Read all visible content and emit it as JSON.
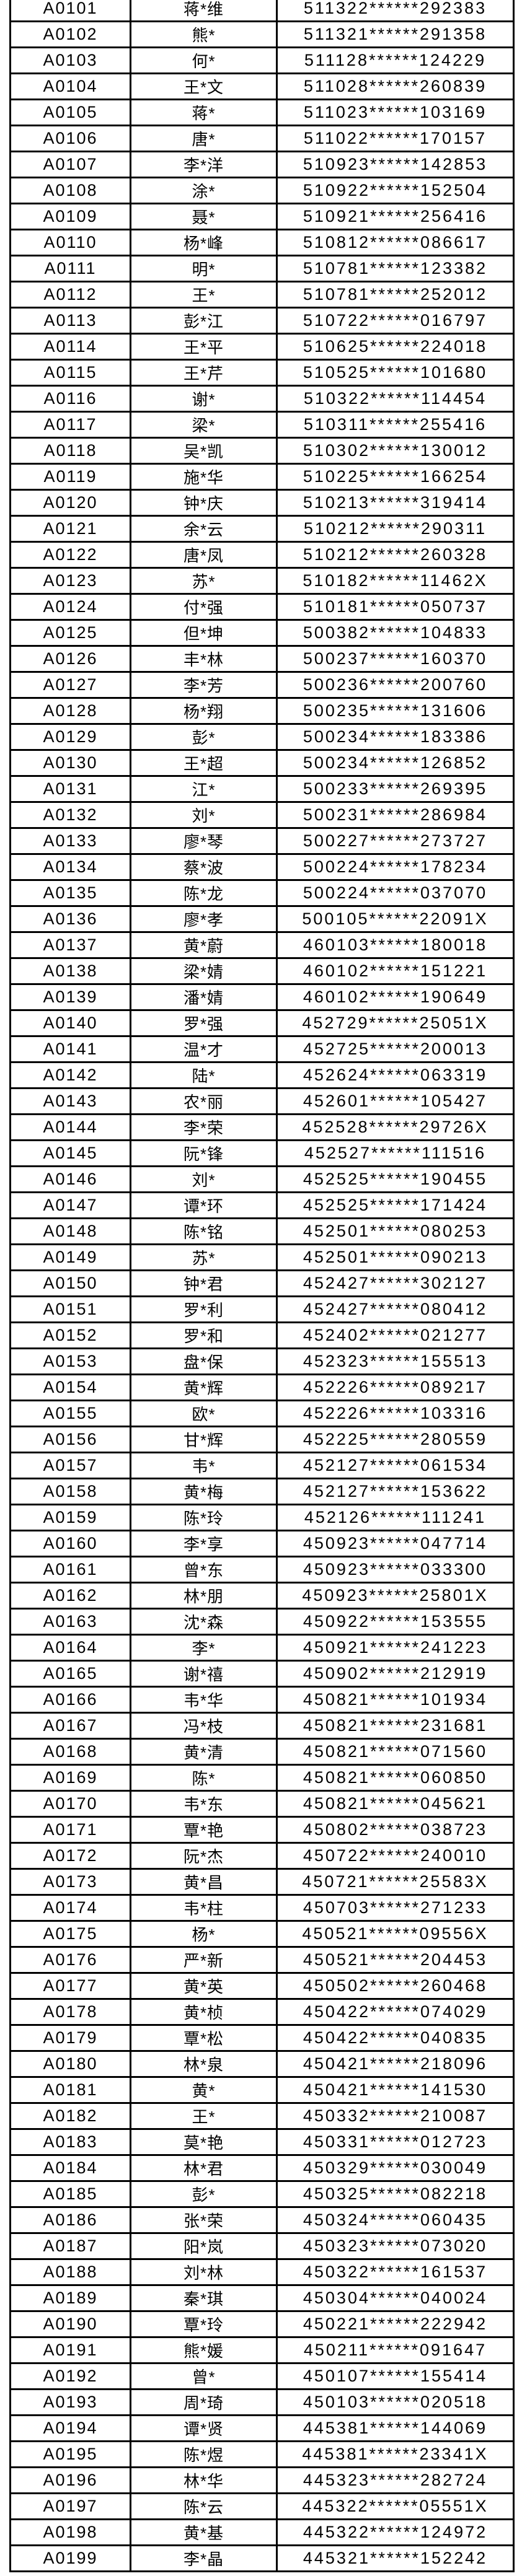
{
  "colors": {
    "background": "#ffffff",
    "border": "#000000",
    "text": "#000000"
  },
  "table": {
    "rows": [
      {
        "id": "A0101",
        "name": "蒋*维",
        "id_number": "511322******292383"
      },
      {
        "id": "A0102",
        "name": "熊*",
        "id_number": "511321******291358"
      },
      {
        "id": "A0103",
        "name": "何*",
        "id_number": "511128******124229"
      },
      {
        "id": "A0104",
        "name": "王*文",
        "id_number": "511028******260839"
      },
      {
        "id": "A0105",
        "name": "蒋*",
        "id_number": "511023******103169"
      },
      {
        "id": "A0106",
        "name": "唐*",
        "id_number": "511022******170157"
      },
      {
        "id": "A0107",
        "name": "李*洋",
        "id_number": "510923******142853"
      },
      {
        "id": "A0108",
        "name": "涂*",
        "id_number": "510922******152504"
      },
      {
        "id": "A0109",
        "name": "聂*",
        "id_number": "510921******256416"
      },
      {
        "id": "A0110",
        "name": "杨*峰",
        "id_number": "510812******086617"
      },
      {
        "id": "A0111",
        "name": "明*",
        "id_number": "510781******123382"
      },
      {
        "id": "A0112",
        "name": "王*",
        "id_number": "510781******252012"
      },
      {
        "id": "A0113",
        "name": "彭*江",
        "id_number": "510722******016797"
      },
      {
        "id": "A0114",
        "name": "王*平",
        "id_number": "510625******224018"
      },
      {
        "id": "A0115",
        "name": "王*芹",
        "id_number": "510525******101680"
      },
      {
        "id": "A0116",
        "name": "谢*",
        "id_number": "510322******114454"
      },
      {
        "id": "A0117",
        "name": "梁*",
        "id_number": "510311******255416"
      },
      {
        "id": "A0118",
        "name": "吴*凯",
        "id_number": "510302******130012"
      },
      {
        "id": "A0119",
        "name": "施*华",
        "id_number": "510225******166254"
      },
      {
        "id": "A0120",
        "name": "钟*庆",
        "id_number": "510213******319414"
      },
      {
        "id": "A0121",
        "name": "余*云",
        "id_number": "510212******290311"
      },
      {
        "id": "A0122",
        "name": "唐*凤",
        "id_number": "510212******260328"
      },
      {
        "id": "A0123",
        "name": "苏*",
        "id_number": "510182******11462X"
      },
      {
        "id": "A0124",
        "name": "付*强",
        "id_number": "510181******050737"
      },
      {
        "id": "A0125",
        "name": "但*坤",
        "id_number": "500382******104833"
      },
      {
        "id": "A0126",
        "name": "丰*林",
        "id_number": "500237******160370"
      },
      {
        "id": "A0127",
        "name": "李*芳",
        "id_number": "500236******200760"
      },
      {
        "id": "A0128",
        "name": "杨*翔",
        "id_number": "500235******131606"
      },
      {
        "id": "A0129",
        "name": "彭*",
        "id_number": "500234******183386"
      },
      {
        "id": "A0130",
        "name": "王*超",
        "id_number": "500234******126852"
      },
      {
        "id": "A0131",
        "name": "江*",
        "id_number": "500233******269395"
      },
      {
        "id": "A0132",
        "name": "刘*",
        "id_number": "500231******286984"
      },
      {
        "id": "A0133",
        "name": "廖*琴",
        "id_number": "500227******273727"
      },
      {
        "id": "A0134",
        "name": "蔡*波",
        "id_number": "500224******178234"
      },
      {
        "id": "A0135",
        "name": "陈*龙",
        "id_number": "500224******037070"
      },
      {
        "id": "A0136",
        "name": "廖*孝",
        "id_number": "500105******22091X"
      },
      {
        "id": "A0137",
        "name": "黄*蔚",
        "id_number": "460103******180018"
      },
      {
        "id": "A0138",
        "name": "梁*婧",
        "id_number": "460102******151221"
      },
      {
        "id": "A0139",
        "name": "潘*婧",
        "id_number": "460102******190649"
      },
      {
        "id": "A0140",
        "name": "罗*强",
        "id_number": "452729******25051X"
      },
      {
        "id": "A0141",
        "name": "温*才",
        "id_number": "452725******200013"
      },
      {
        "id": "A0142",
        "name": "陆*",
        "id_number": "452624******063319"
      },
      {
        "id": "A0143",
        "name": "农*丽",
        "id_number": "452601******105427"
      },
      {
        "id": "A0144",
        "name": "李*荣",
        "id_number": "452528******29726X"
      },
      {
        "id": "A0145",
        "name": "阮*锋",
        "id_number": "452527******111516"
      },
      {
        "id": "A0146",
        "name": "刘*",
        "id_number": "452525******190455"
      },
      {
        "id": "A0147",
        "name": "谭*环",
        "id_number": "452525******171424"
      },
      {
        "id": "A0148",
        "name": "陈*铭",
        "id_number": "452501******080253"
      },
      {
        "id": "A0149",
        "name": "苏*",
        "id_number": "452501******090213"
      },
      {
        "id": "A0150",
        "name": "钟*君",
        "id_number": "452427******302127"
      },
      {
        "id": "A0151",
        "name": "罗*利",
        "id_number": "452427******080412"
      },
      {
        "id": "A0152",
        "name": "罗*和",
        "id_number": "452402******021277"
      },
      {
        "id": "A0153",
        "name": "盘*保",
        "id_number": "452323******155513"
      },
      {
        "id": "A0154",
        "name": "黄*辉",
        "id_number": "452226******089217"
      },
      {
        "id": "A0155",
        "name": "欧*",
        "id_number": "452226******103316"
      },
      {
        "id": "A0156",
        "name": "甘*辉",
        "id_number": "452225******280559"
      },
      {
        "id": "A0157",
        "name": "韦*",
        "id_number": "452127******061534"
      },
      {
        "id": "A0158",
        "name": "黄*梅",
        "id_number": "452127******153622"
      },
      {
        "id": "A0159",
        "name": "陈*玲",
        "id_number": "452126******111241"
      },
      {
        "id": "A0160",
        "name": "李*享",
        "id_number": "450923******047714"
      },
      {
        "id": "A0161",
        "name": "曾*东",
        "id_number": "450923******033300"
      },
      {
        "id": "A0162",
        "name": "林*朋",
        "id_number": "450923******25801X"
      },
      {
        "id": "A0163",
        "name": "沈*森",
        "id_number": "450922******153555"
      },
      {
        "id": "A0164",
        "name": "李*",
        "id_number": "450921******241223"
      },
      {
        "id": "A0165",
        "name": "谢*禧",
        "id_number": "450902******212919"
      },
      {
        "id": "A0166",
        "name": "韦*华",
        "id_number": "450821******101934"
      },
      {
        "id": "A0167",
        "name": "冯*枝",
        "id_number": "450821******231681"
      },
      {
        "id": "A0168",
        "name": "黄*清",
        "id_number": "450821******071560"
      },
      {
        "id": "A0169",
        "name": "陈*",
        "id_number": "450821******060850"
      },
      {
        "id": "A0170",
        "name": "韦*东",
        "id_number": "450821******045621"
      },
      {
        "id": "A0171",
        "name": "覃*艳",
        "id_number": "450802******038723"
      },
      {
        "id": "A0172",
        "name": "阮*杰",
        "id_number": "450722******240010"
      },
      {
        "id": "A0173",
        "name": "黄*昌",
        "id_number": "450721******25583X"
      },
      {
        "id": "A0174",
        "name": "韦*柱",
        "id_number": "450703******271233"
      },
      {
        "id": "A0175",
        "name": "杨*",
        "id_number": "450521******09556X"
      },
      {
        "id": "A0176",
        "name": "严*新",
        "id_number": "450521******204453"
      },
      {
        "id": "A0177",
        "name": "黄*英",
        "id_number": "450502******260468"
      },
      {
        "id": "A0178",
        "name": "黄*桢",
        "id_number": "450422******074029"
      },
      {
        "id": "A0179",
        "name": "覃*松",
        "id_number": "450422******040835"
      },
      {
        "id": "A0180",
        "name": "林*泉",
        "id_number": "450421******218096"
      },
      {
        "id": "A0181",
        "name": "黄*",
        "id_number": "450421******141530"
      },
      {
        "id": "A0182",
        "name": "王*",
        "id_number": "450332******210087"
      },
      {
        "id": "A0183",
        "name": "莫*艳",
        "id_number": "450331******012723"
      },
      {
        "id": "A0184",
        "name": "林*君",
        "id_number": "450329******030049"
      },
      {
        "id": "A0185",
        "name": "彭*",
        "id_number": "450325******082218"
      },
      {
        "id": "A0186",
        "name": "张*荣",
        "id_number": "450324******060435"
      },
      {
        "id": "A0187",
        "name": "阳*岚",
        "id_number": "450323******073020"
      },
      {
        "id": "A0188",
        "name": "刘*林",
        "id_number": "450322******161537"
      },
      {
        "id": "A0189",
        "name": "秦*琪",
        "id_number": "450304******040024"
      },
      {
        "id": "A0190",
        "name": "覃*玲",
        "id_number": "450221******222942"
      },
      {
        "id": "A0191",
        "name": "熊*媛",
        "id_number": "450211******091647"
      },
      {
        "id": "A0192",
        "name": "曾*",
        "id_number": "450107******155414"
      },
      {
        "id": "A0193",
        "name": "周*琦",
        "id_number": "450103******020518"
      },
      {
        "id": "A0194",
        "name": "谭*贤",
        "id_number": "445381******144069"
      },
      {
        "id": "A0195",
        "name": "陈*煜",
        "id_number": "445381******23341X"
      },
      {
        "id": "A0196",
        "name": "林*华",
        "id_number": "445323******282724"
      },
      {
        "id": "A0197",
        "name": "陈*云",
        "id_number": "445322******05551X"
      },
      {
        "id": "A0198",
        "name": "黄*基",
        "id_number": "445322******124972"
      },
      {
        "id": "A0199",
        "name": "李*晶",
        "id_number": "445321******152242"
      }
    ]
  }
}
